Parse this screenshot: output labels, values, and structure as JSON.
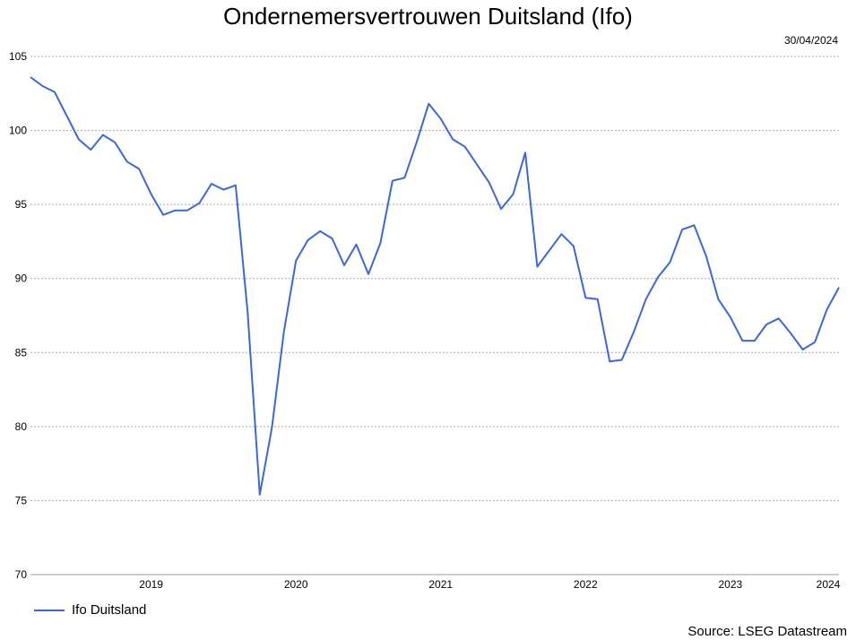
{
  "chart_data": {
    "type": "line",
    "title": "Ondernemersvertrouwen Duitsland (Ifo)",
    "date_label": "30/04/2024",
    "source": "Source: LSEG Datastream",
    "ylim": [
      70,
      105
    ],
    "y_ticks": [
      "70",
      "75",
      "80",
      "85",
      "90",
      "95",
      "100",
      "105"
    ],
    "x_tick_labels": [
      "2019",
      "2020",
      "2021",
      "2022",
      "2023",
      "2024"
    ],
    "legend_position": "bottom-left",
    "grid": true,
    "series": [
      {
        "name": "Ifo Duitsland",
        "color": "#3a68d8",
        "x": [
          "2018-09",
          "2018-10",
          "2018-11",
          "2018-12",
          "2019-01",
          "2019-02",
          "2019-03",
          "2019-04",
          "2019-05",
          "2019-06",
          "2019-07",
          "2019-08",
          "2019-09",
          "2019-10",
          "2019-11",
          "2019-12",
          "2020-01",
          "2020-02",
          "2020-03",
          "2020-04",
          "2020-05",
          "2020-06",
          "2020-07",
          "2020-08",
          "2020-09",
          "2020-10",
          "2020-11",
          "2020-12",
          "2021-01",
          "2021-02",
          "2021-03",
          "2021-04",
          "2021-05",
          "2021-06",
          "2021-07",
          "2021-08",
          "2021-09",
          "2021-10",
          "2021-11",
          "2021-12",
          "2022-01",
          "2022-02",
          "2022-03",
          "2022-04",
          "2022-05",
          "2022-06",
          "2022-07",
          "2022-08",
          "2022-09",
          "2022-10",
          "2022-11",
          "2022-12",
          "2023-01",
          "2023-02",
          "2023-03",
          "2023-04",
          "2023-05",
          "2023-06",
          "2023-07",
          "2023-08",
          "2023-09",
          "2023-10",
          "2023-11",
          "2023-12",
          "2024-01",
          "2024-02",
          "2024-03",
          "2024-04"
        ],
        "values": [
          103.6,
          103.0,
          102.6,
          101.0,
          99.4,
          98.7,
          99.7,
          99.2,
          97.9,
          97.4,
          95.7,
          94.3,
          94.6,
          94.6,
          95.1,
          96.4,
          96.0,
          96.3,
          87.7,
          75.4,
          79.9,
          86.4,
          91.2,
          92.6,
          93.2,
          92.7,
          90.9,
          92.3,
          90.3,
          92.4,
          96.6,
          96.8,
          99.2,
          101.8,
          100.8,
          99.4,
          98.9,
          97.7,
          96.5,
          94.7,
          95.7,
          98.5,
          90.8,
          91.9,
          93.0,
          92.2,
          88.7,
          88.6,
          84.4,
          84.5,
          86.4,
          88.6,
          90.1,
          91.1,
          93.3,
          93.6,
          91.5,
          88.6,
          87.4,
          85.8,
          85.8,
          86.9,
          87.3,
          86.3,
          85.2,
          85.7,
          87.9,
          89.4
        ]
      }
    ]
  }
}
